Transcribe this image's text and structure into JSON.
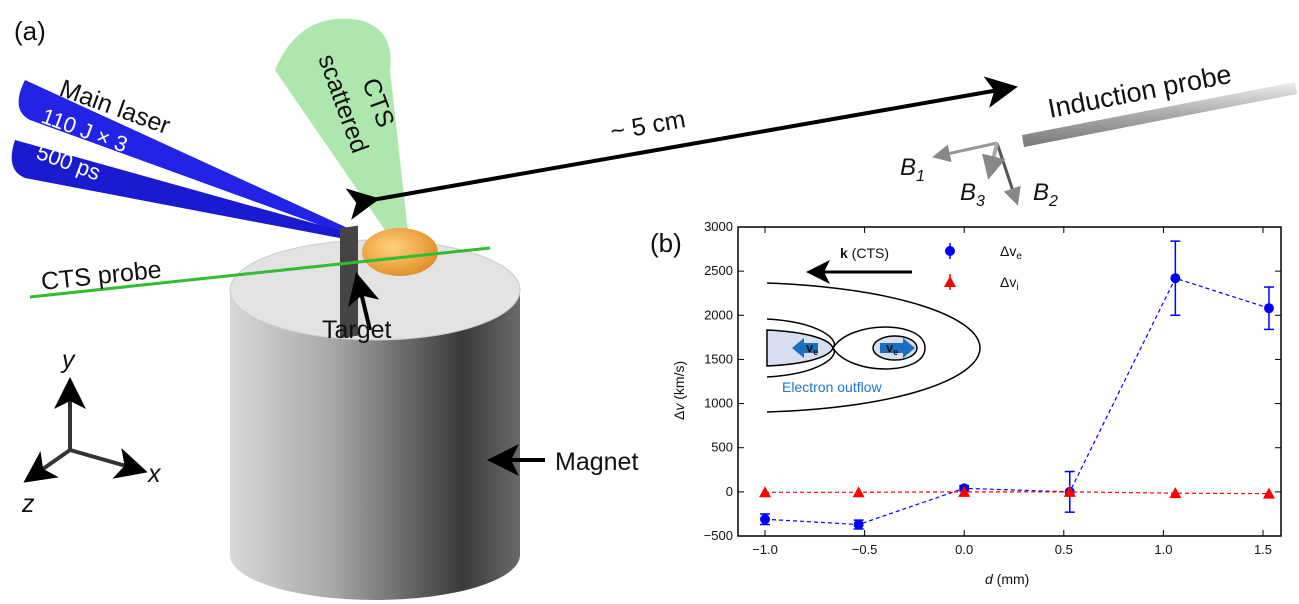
{
  "panel_a": {
    "label": "(a)",
    "main_laser": "Main laser",
    "energy": "110 J × 3",
    "duration": "500 ps",
    "cts_scattered_1": "CTS",
    "cts_scattered_2": "scattered",
    "distance": "~ 5 cm",
    "induction_probe": "Induction probe",
    "b1": "B",
    "b1_sub": "1",
    "b2": "B",
    "b2_sub": "2",
    "b3": "B",
    "b3_sub": "3",
    "cts_probe": "CTS probe",
    "target": "Target",
    "magnet": "Magnet",
    "axis_x": "x",
    "axis_y": "y",
    "axis_z": "z",
    "colors": {
      "laser": "#1f1fe0",
      "cts_cone": "#8ee08e",
      "probe": "#2db82d",
      "plasma": "#f0a040"
    }
  },
  "panel_b": {
    "label": "(b)",
    "inset": {
      "k_label_bold": "k",
      "k_label_rest": " (CTS)",
      "ve_symbol": "v",
      "ve_sub": "e",
      "outflow": "Electron outflow"
    }
  },
  "chart_data": {
    "type": "scatter",
    "xlabel_italic": "d",
    "xlabel_rest": " (mm)",
    "ylabel_delta": "Δ",
    "ylabel_italic": "v",
    "ylabel_rest": " (km/s)",
    "xlim": [
      -1.1,
      1.6
    ],
    "ylim": [
      -500,
      3000
    ],
    "xticks": [
      "−1.0",
      "−0.5",
      "0.0",
      "0.5",
      "1.0",
      "1.5"
    ],
    "xtick_values": [
      -1.0,
      -0.5,
      0.0,
      0.5,
      1.0,
      1.5
    ],
    "yticks": [
      "−500",
      "0",
      "500",
      "1000",
      "1500",
      "2000",
      "2500",
      "3000"
    ],
    "ytick_values": [
      -500,
      0,
      500,
      1000,
      1500,
      2000,
      2500,
      3000
    ],
    "grid": false,
    "legend_placement": "top-center",
    "series": [
      {
        "name": "Δv",
        "name_sub": "e",
        "color": "#0000ff",
        "marker": "circle",
        "line": "dashed",
        "x": [
          -1.0,
          -0.53,
          0.0,
          0.53,
          1.06,
          1.53
        ],
        "y": [
          -310,
          -370,
          40,
          0,
          2420,
          2080
        ],
        "err": [
          60,
          50,
          30,
          230,
          420,
          240
        ]
      },
      {
        "name": "Δv",
        "name_sub": "i",
        "color": "#ff0000",
        "marker": "triangle",
        "line": "dashed",
        "x": [
          -1.0,
          -0.53,
          0.0,
          0.53,
          1.06,
          1.53
        ],
        "y": [
          -5,
          -5,
          0,
          0,
          -15,
          -20
        ],
        "err": [
          0,
          0,
          0,
          0,
          0,
          0
        ]
      }
    ]
  }
}
